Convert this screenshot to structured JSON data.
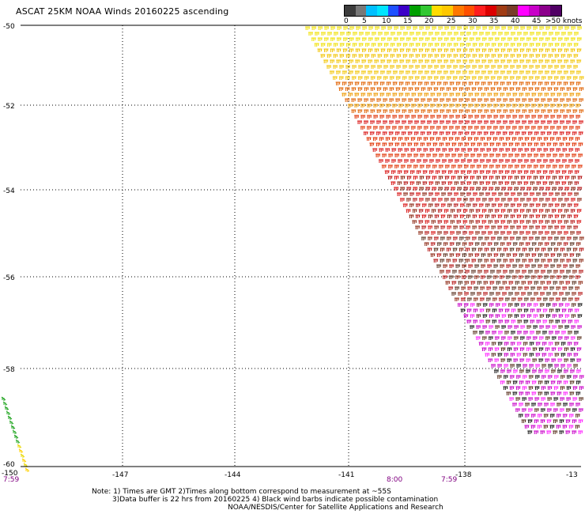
{
  "title": "ASCAT 25KM NOAA Winds 20160225 ascending",
  "colorbar": {
    "colors": [
      "#3c3c3c",
      "#787878",
      "#00bfff",
      "#00e5ff",
      "#1e50ff",
      "#3c00c8",
      "#00a000",
      "#32c832",
      "#ffdc00",
      "#ffc800",
      "#ff7800",
      "#ff5000",
      "#ff1e1e",
      "#dc0000",
      "#a03c14",
      "#783c28",
      "#ff00ff",
      "#c800c8",
      "#8c008c",
      "#500064"
    ],
    "labels": [
      "0",
      "5",
      "10",
      "15",
      "20",
      "25",
      "30",
      "35",
      "40",
      "45",
      ">50 knots"
    ]
  },
  "map": {
    "lat_labels": [
      "-50",
      "-52",
      "-54",
      "-56",
      "-58",
      "-60"
    ],
    "lon_labels": [
      "-150",
      "-147",
      "-144",
      "-141",
      "-138",
      "-13"
    ],
    "time_labels": [
      {
        "text": "7:59",
        "color": "#800080"
      },
      {
        "text": "8:00",
        "color": "#800080"
      },
      {
        "text": "7:59",
        "color": "#800080"
      }
    ],
    "swath_palette": [
      "#f0e000",
      "#f2c400",
      "#ee9a00",
      "#e06000",
      "#e03000",
      "#d81010",
      "#b41414",
      "#8c2814",
      "#5a3220",
      "#c800c8",
      "#ff22ff",
      "#1a1a1a"
    ],
    "left_swath_palette": [
      "#18a018",
      "#2aaa2a",
      "#e8d800",
      "#ffd000"
    ]
  },
  "notes": {
    "line1": "Note: 1) Times are GMT 2)Times along bottom correspond to measurement at ~55S",
    "line2": "3)Data buffer is 22 hrs from 20160225 4) Black wind barbs indicate possible contamination",
    "line3": "NOAA/NESDIS/Center for Satellite Applications and Research"
  }
}
